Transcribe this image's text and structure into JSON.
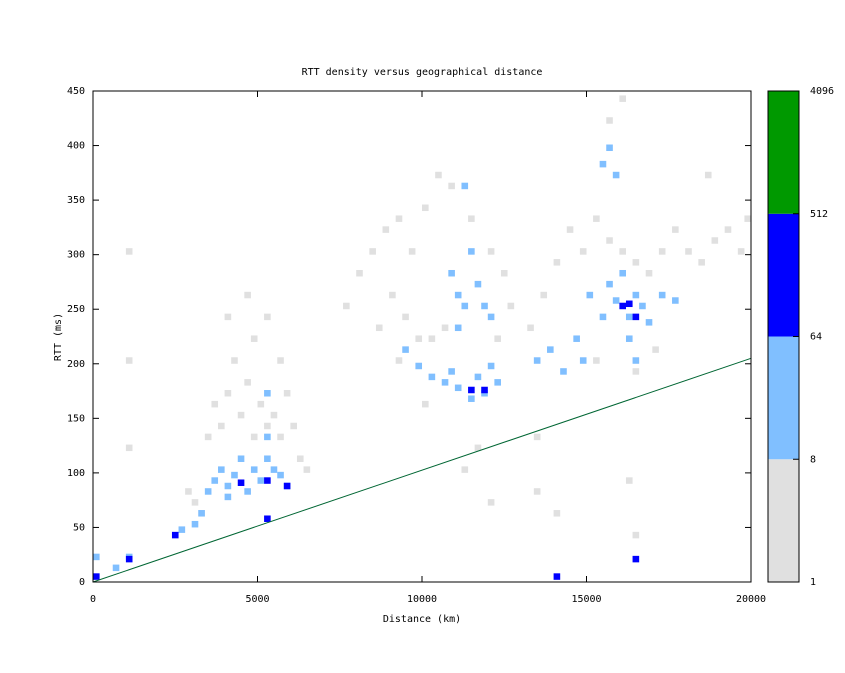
{
  "chart_data": {
    "type": "heatmap",
    "title": "RTT density versus geographical distance",
    "xlabel": "Distance (km)",
    "ylabel": "RTT (ms)",
    "xlim": [
      0,
      20000
    ],
    "xticks": [
      0,
      5000,
      10000,
      15000,
      20000
    ],
    "ylim": [
      0,
      450
    ],
    "yticks": [
      0,
      50,
      100,
      150,
      200,
      250,
      300,
      350,
      400,
      450
    ],
    "cells": {
      "x": [
        3400,
        3600,
        3800,
        4000,
        4200,
        4400,
        4600,
        4800,
        5000,
        5400,
        5600,
        5800,
        6000,
        5200,
        4800,
        3200,
        3000,
        2800,
        6200,
        6400,
        4000,
        4600,
        5200,
        5600,
        7600,
        8000,
        8400,
        8800,
        9200,
        9600,
        10000,
        10400,
        10800,
        9000,
        9400,
        9800,
        10200,
        10600,
        12000,
        12400,
        12200,
        11400,
        12600,
        8600,
        9200,
        10000,
        13200,
        13600,
        14000,
        14400,
        14800,
        15200,
        15600,
        16000,
        16400,
        16800,
        17200,
        17600,
        18000,
        18400,
        18800,
        19200,
        19600,
        15600,
        16000,
        15200,
        16400,
        17000,
        13400,
        13400,
        14000,
        16200,
        16400,
        11200,
        12000,
        11600,
        1000,
        1000,
        1000,
        19800,
        18600,
        3400,
        3600,
        3800,
        4000,
        4200,
        4400,
        4600,
        4800,
        5000,
        5200,
        5400,
        5600,
        5800,
        3200,
        3000,
        2600,
        5200,
        5200,
        4000,
        9400,
        9800,
        10200,
        10600,
        11000,
        11400,
        11800,
        12200,
        10800,
        11600,
        12000,
        10800,
        11000,
        11200,
        11600,
        11800,
        12000,
        11400,
        11000,
        13400,
        13800,
        14200,
        14600,
        14800,
        15000,
        15400,
        15600,
        15800,
        16000,
        16200,
        16400,
        16600,
        16800,
        17200,
        17600,
        16200,
        16400,
        15400,
        15600,
        15800,
        11200,
        1000,
        0,
        600,
        4400,
        5200,
        5800,
        5200,
        2400,
        11400,
        11800,
        16000,
        16200,
        16400,
        1000,
        0,
        14000,
        16400
      ],
      "y": [
        130,
        160,
        140,
        170,
        200,
        150,
        180,
        220,
        160,
        150,
        130,
        170,
        140,
        140,
        130,
        60,
        70,
        80,
        110,
        100,
        240,
        260,
        240,
        200,
        250,
        280,
        300,
        320,
        330,
        300,
        340,
        370,
        360,
        260,
        240,
        220,
        220,
        230,
        300,
        280,
        220,
        330,
        250,
        230,
        200,
        160,
        230,
        260,
        290,
        320,
        300,
        330,
        310,
        300,
        290,
        280,
        300,
        320,
        300,
        290,
        310,
        320,
        300,
        420,
        440,
        200,
        190,
        210,
        130,
        80,
        60,
        90,
        40,
        100,
        70,
        120,
        200,
        120,
        300,
        330,
        370,
        80,
        90,
        100,
        85,
        95,
        110,
        80,
        100,
        90,
        110,
        100,
        95,
        85,
        60,
        50,
        45,
        130,
        170,
        75,
        210,
        195,
        185,
        180,
        175,
        165,
        170,
        180,
        190,
        185,
        195,
        280,
        260,
        250,
        270,
        250,
        240,
        300,
        230,
        200,
        210,
        190,
        220,
        200,
        260,
        240,
        270,
        255,
        280,
        240,
        260,
        250,
        235,
        260,
        255,
        220,
        200,
        380,
        395,
        370,
        360,
        20,
        20,
        10,
        88,
        90,
        85,
        55,
        40,
        173,
        173,
        250,
        252,
        240,
        18,
        2,
        2,
        18
      ],
      "values": [
        3,
        2,
        4,
        3,
        2,
        4,
        3,
        2,
        5,
        4,
        3,
        2,
        2,
        5,
        4,
        3,
        3,
        2,
        2,
        2,
        2,
        2,
        3,
        3,
        2,
        2,
        3,
        3,
        4,
        4,
        3,
        3,
        4,
        2,
        3,
        4,
        5,
        4,
        3,
        2,
        3,
        2,
        2,
        2,
        3,
        4,
        2,
        3,
        3,
        2,
        3,
        4,
        5,
        5,
        4,
        3,
        3,
        2,
        2,
        2,
        2,
        2,
        3,
        2,
        2,
        3,
        4,
        2,
        2,
        2,
        2,
        3,
        2,
        2,
        2,
        2,
        2,
        2,
        2,
        2,
        2,
        12,
        15,
        20,
        18,
        22,
        30,
        16,
        25,
        35,
        40,
        28,
        20,
        14,
        10,
        12,
        9,
        18,
        10,
        11,
        14,
        20,
        25,
        30,
        35,
        40,
        38,
        22,
        26,
        30,
        15,
        18,
        25,
        30,
        28,
        35,
        20,
        12,
        15,
        10,
        14,
        12,
        16,
        18,
        12,
        20,
        30,
        35,
        40,
        45,
        38,
        30,
        22,
        15,
        12,
        20,
        14,
        18,
        22,
        16,
        12,
        10,
        20,
        14,
        80,
        120,
        90,
        70,
        65,
        100,
        95,
        110,
        130,
        90,
        75,
        150,
        70,
        80
      ]
    },
    "line": {
      "x": [
        0,
        20000
      ],
      "y": [
        0,
        205
      ],
      "color": "#006633"
    },
    "colorbar": {
      "log": true,
      "ticks": [
        1,
        8,
        64,
        512,
        4096
      ],
      "colors": [
        "#e0e0e0",
        "#80bfff",
        "#0000ff",
        "#009900"
      ]
    }
  }
}
